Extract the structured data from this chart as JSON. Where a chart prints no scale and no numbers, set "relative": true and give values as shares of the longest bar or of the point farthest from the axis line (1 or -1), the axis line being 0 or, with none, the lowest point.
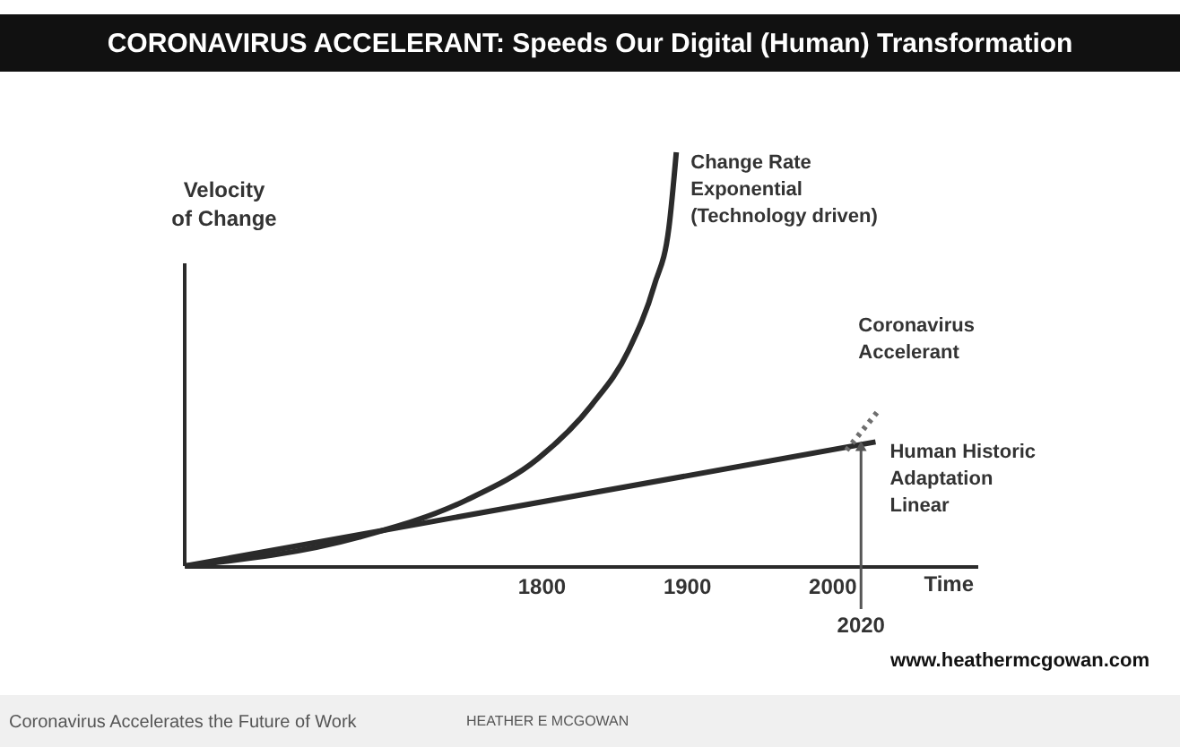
{
  "chart_data": {
    "type": "line",
    "title": "CORONAVIRUS ACCELERANT: Speeds Our Digital (Human) Transformation",
    "relative": true,
    "ylabel": "Velocity\nof Change",
    "xlabel": "Time",
    "xlim": [
      1555,
      2100
    ],
    "xticks": [
      1800,
      1900,
      2000
    ],
    "tick_labels": "x",
    "grid": false,
    "marker": "none",
    "series": [
      {
        "name": "Change Rate\nExponential\n(Technology driven)",
        "color": "#2b2b2b",
        "line_style": "solid",
        "x": [
          1555,
          1675,
          1749,
          1798,
          1835,
          1860,
          1878,
          1888,
          1893
        ],
        "values": [
          0,
          0.07,
          0.16,
          0.26,
          0.39,
          0.52,
          0.68,
          0.82,
          1.0
        ]
      },
      {
        "name": "Human Historic\nAdaptation\nLinear",
        "color": "#2b2b2b",
        "line_style": "solid",
        "x": [
          1555,
          2030
        ],
        "values": [
          0,
          0.3
        ]
      },
      {
        "name": "Coronavirus\nAccelerant",
        "color": "#6e6e6e",
        "line_style": "dotted",
        "x": [
          2010,
          2033
        ],
        "values": [
          0.28,
          0.38
        ]
      }
    ],
    "annotations": [
      {
        "text": "2020",
        "x": 2020,
        "y": 0.29
      },
      "www.heathermcgowan.com",
      "Coronavirus Accelerates the Future of Work",
      "HEATHER E MCGOWAN"
    ]
  }
}
